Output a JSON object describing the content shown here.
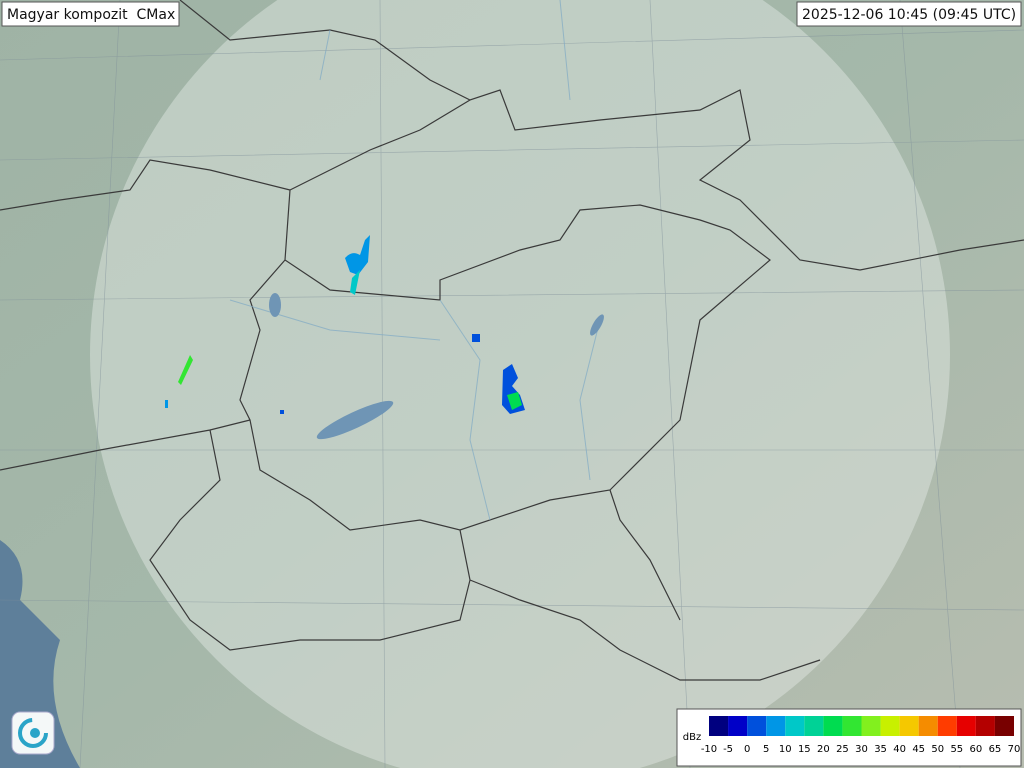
{
  "header": {
    "title": "Magyar kompozit  CMax",
    "timestamp": "2025-12-06 10:45 (09:45 UTC)"
  },
  "legend": {
    "label": "dBz",
    "ticks": [
      -10,
      -5,
      0,
      5,
      10,
      15,
      20,
      25,
      30,
      35,
      40,
      45,
      50,
      55,
      60,
      65,
      70
    ],
    "colors": [
      "#00007f",
      "#0000c8",
      "#0050dc",
      "#0096e6",
      "#00c8c8",
      "#00d296",
      "#00dc50",
      "#32e632",
      "#82f01e",
      "#c8f000",
      "#f5c800",
      "#f58c00",
      "#ff3c00",
      "#e60000",
      "#b40000",
      "#780000"
    ]
  }
}
